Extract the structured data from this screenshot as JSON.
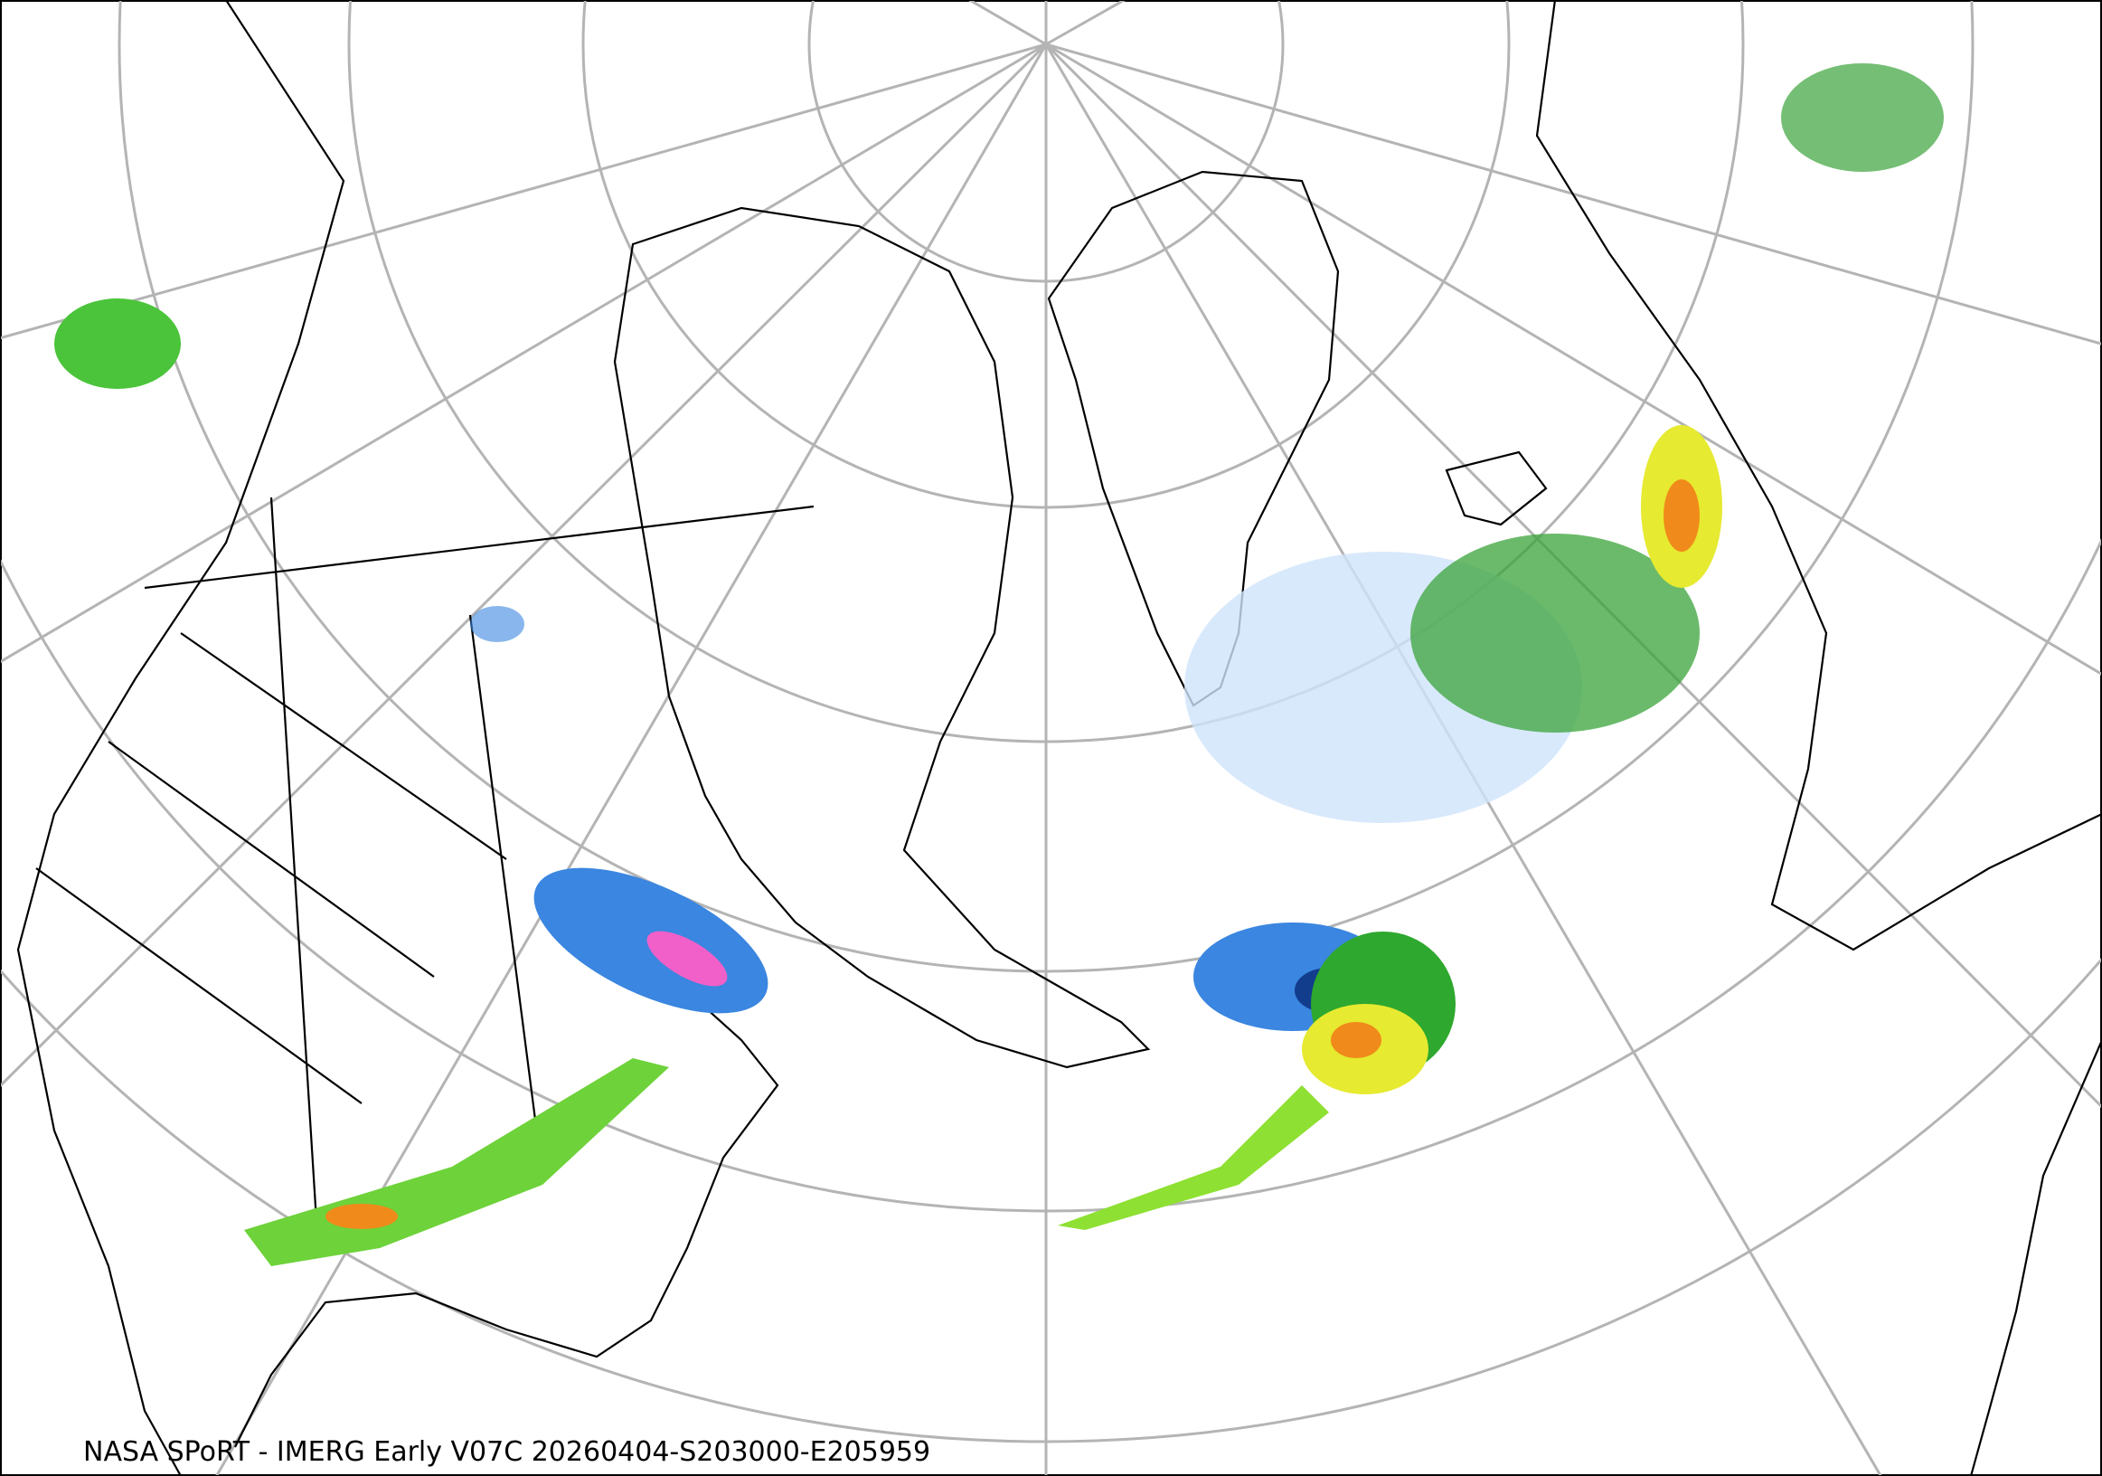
{
  "footer": {
    "caption": "NASA SPoRT - IMERG Early V07C 20260404-S203000-E205959"
  }
}
